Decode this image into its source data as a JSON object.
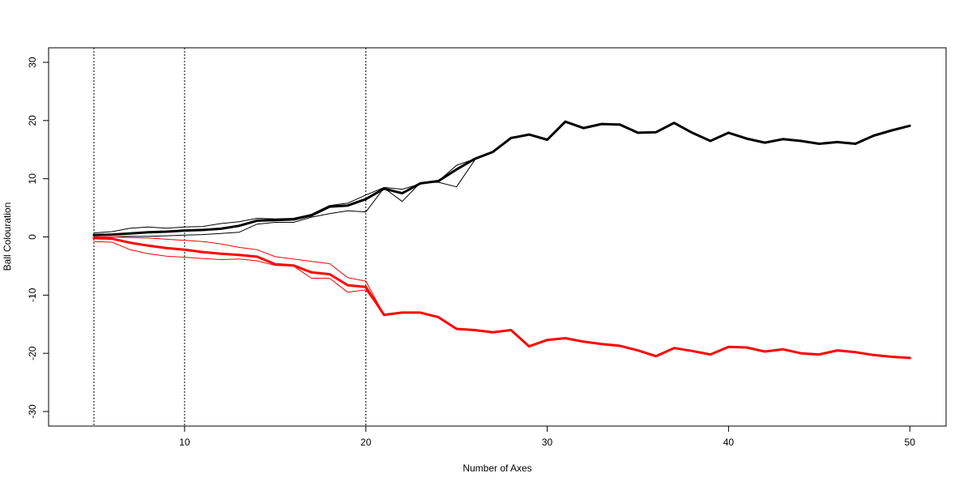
{
  "chart_data": {
    "type": "line",
    "title": "",
    "xlabel": "Number of Axes",
    "ylabel": "Ball Colouration",
    "xlim": [
      2.5,
      52
    ],
    "ylim": [
      -32.5,
      32.5
    ],
    "x_ticks": [
      10,
      20,
      30,
      40,
      50
    ],
    "x_tick_labels": [
      "10",
      "20",
      "30",
      "40",
      "50"
    ],
    "y_ticks": [
      -30,
      -20,
      -10,
      0,
      10,
      20,
      30
    ],
    "y_tick_labels": [
      "-30",
      "-20",
      "-10",
      "0",
      "10",
      "20",
      "30"
    ],
    "grid": false,
    "legend": "none",
    "vertical_reference_lines": [
      5,
      10,
      20
    ],
    "colors": {
      "black": "#000000",
      "red": "#ff0000"
    },
    "series": [
      {
        "color": "#000000",
        "weight": "thick",
        "x": [
          5,
          6,
          7,
          8,
          9,
          10,
          11,
          12,
          13,
          14,
          15,
          16,
          17,
          18,
          19,
          20,
          21,
          22,
          23,
          24,
          25,
          26,
          27,
          28,
          29,
          30,
          31,
          32,
          33,
          34,
          35,
          36,
          37,
          38,
          39,
          40,
          41,
          42,
          43,
          44,
          45,
          46,
          47,
          48,
          49,
          50
        ],
        "values": [
          0.3,
          0.4,
          0.6,
          0.8,
          0.9,
          1.1,
          1.2,
          1.4,
          1.9,
          2.8,
          2.9,
          3.0,
          3.7,
          5.2,
          5.4,
          6.5,
          8.3,
          7.5,
          9.2,
          9.6,
          11.6,
          13.4,
          14.6,
          17.0,
          17.6,
          16.7,
          19.8,
          18.7,
          19.4,
          19.3,
          17.9,
          18.0,
          19.6,
          17.9,
          16.5,
          17.9,
          16.9,
          16.2,
          16.8,
          16.5,
          16.0,
          16.3,
          16.0,
          17.4,
          18.3,
          19.1
        ]
      },
      {
        "color": "#000000",
        "weight": "thin",
        "x": [
          5,
          6,
          7,
          8,
          9,
          10,
          11,
          12,
          13,
          14,
          15,
          16,
          17,
          18,
          19,
          20,
          21,
          22,
          23,
          24,
          25,
          26
        ],
        "values": [
          0.7,
          0.9,
          1.5,
          1.7,
          1.5,
          1.7,
          1.8,
          2.3,
          2.6,
          3.2,
          3.1,
          3.2,
          3.9,
          5.4,
          5.8,
          7.2,
          8.5,
          8.2,
          9.1,
          9.6,
          12.3,
          13.4
        ]
      },
      {
        "color": "#000000",
        "weight": "thin",
        "x": [
          5,
          6,
          7,
          8,
          9,
          10,
          11,
          12,
          13,
          14,
          15,
          16,
          17,
          18,
          19,
          20,
          21,
          22,
          23,
          24,
          25,
          26
        ],
        "values": [
          0.0,
          0.0,
          0.1,
          0.1,
          0.2,
          0.3,
          0.4,
          0.6,
          0.8,
          2.2,
          2.5,
          2.5,
          3.4,
          4.0,
          4.5,
          4.3,
          8.4,
          6.1,
          9.3,
          9.4,
          8.6,
          13.2
        ]
      },
      {
        "color": "#ff0000",
        "weight": "thick",
        "x": [
          5,
          6,
          7,
          8,
          9,
          10,
          11,
          12,
          13,
          14,
          15,
          16,
          17,
          18,
          19,
          20,
          21,
          22,
          23,
          24,
          25,
          26,
          27,
          28,
          29,
          30,
          31,
          32,
          33,
          34,
          35,
          36,
          37,
          38,
          39,
          40,
          41,
          42,
          43,
          44,
          45,
          46,
          47,
          48,
          49,
          50
        ],
        "values": [
          -0.2,
          -0.3,
          -1.0,
          -1.5,
          -1.9,
          -2.2,
          -2.6,
          -2.9,
          -3.1,
          -3.4,
          -4.7,
          -4.9,
          -6.1,
          -6.4,
          -8.3,
          -8.6,
          -13.4,
          -13.0,
          -13.0,
          -13.8,
          -15.8,
          -16.0,
          -16.4,
          -16.0,
          -18.8,
          -17.7,
          -17.4,
          -18.0,
          -18.4,
          -18.7,
          -19.5,
          -20.5,
          -19.1,
          -19.6,
          -20.2,
          -18.9,
          -19.0,
          -19.7,
          -19.3,
          -20.0,
          -20.2,
          -19.5,
          -19.8,
          -20.3,
          -20.6,
          -20.8
        ]
      },
      {
        "color": "#ff0000",
        "weight": "thin",
        "x": [
          5,
          6,
          7,
          8,
          9,
          10,
          11,
          12,
          13,
          14,
          15,
          16,
          17,
          18,
          19,
          20,
          21
        ],
        "values": [
          0.0,
          0.0,
          -0.1,
          -0.2,
          -0.4,
          -0.6,
          -0.8,
          -1.2,
          -1.8,
          -2.2,
          -3.4,
          -3.8,
          -4.2,
          -4.6,
          -7.0,
          -7.6,
          -13.4
        ]
      },
      {
        "color": "#ff0000",
        "weight": "thin",
        "x": [
          5,
          6,
          7,
          8,
          9,
          10,
          11,
          12,
          13,
          14,
          15,
          16,
          17,
          18,
          19,
          20,
          21
        ],
        "values": [
          -0.8,
          -0.9,
          -2.2,
          -2.9,
          -3.3,
          -3.5,
          -3.7,
          -3.9,
          -3.8,
          -4.1,
          -4.9,
          -5.0,
          -7.1,
          -7.1,
          -9.5,
          -9.1,
          -13.4
        ]
      }
    ]
  }
}
